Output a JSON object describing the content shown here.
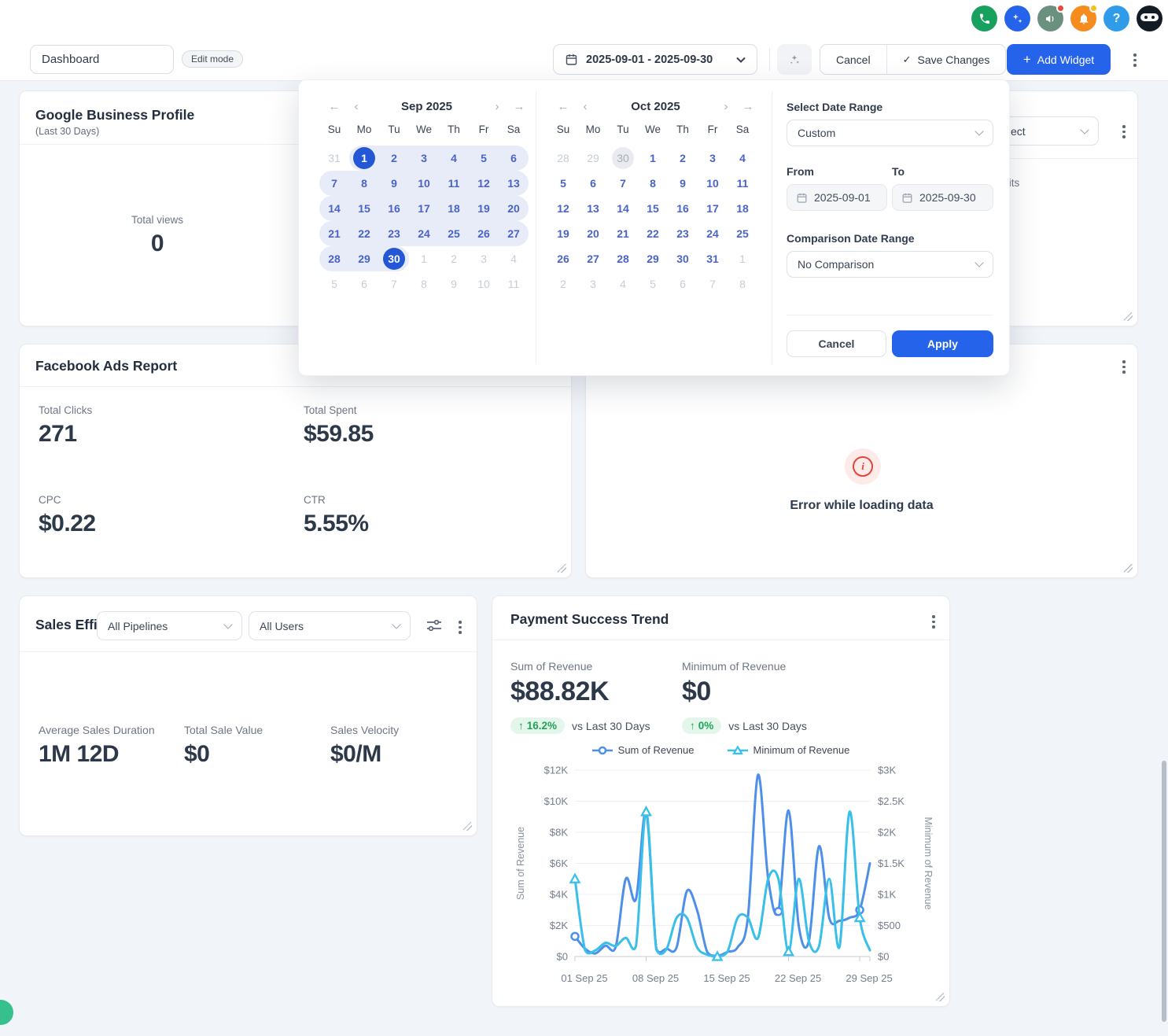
{
  "topbar": {
    "icons": [
      {
        "name": "phone-icon",
        "color": "#18a05e"
      },
      {
        "name": "sparkles-icon",
        "color": "#2563eb"
      },
      {
        "name": "megaphone-icon",
        "color": "#6b9080",
        "badge": "#e5483d"
      },
      {
        "name": "bell-icon",
        "color": "#f68b1f",
        "badge": "#f4c01e"
      },
      {
        "name": "help-icon",
        "color": "#2e9ce9",
        "glyph": "?"
      },
      {
        "name": "ninja-avatar",
        "color": "#141b24"
      }
    ]
  },
  "header": {
    "dashboard_name": "Dashboard",
    "edit_mode_label": "Edit mode",
    "date_range_value": "2025-09-01 - 2025-09-30",
    "cancel_label": "Cancel",
    "save_label": "Save Changes",
    "add_widget_label": "Add Widget"
  },
  "datepicker": {
    "dow": [
      "Su",
      "Mo",
      "Tu",
      "We",
      "Th",
      "Fr",
      "Sa"
    ],
    "months": [
      {
        "title": "Sep 2025",
        "weeks": [
          [
            [
              31,
              "o"
            ],
            [
              1,
              "s"
            ],
            [
              2,
              "r"
            ],
            [
              3,
              "r"
            ],
            [
              4,
              "r"
            ],
            [
              5,
              "r"
            ],
            [
              6,
              "r"
            ]
          ],
          [
            [
              7,
              "r"
            ],
            [
              8,
              "r"
            ],
            [
              9,
              "r"
            ],
            [
              10,
              "r"
            ],
            [
              11,
              "r"
            ],
            [
              12,
              "r"
            ],
            [
              13,
              "r"
            ]
          ],
          [
            [
              14,
              "r"
            ],
            [
              15,
              "r"
            ],
            [
              16,
              "r"
            ],
            [
              17,
              "r"
            ],
            [
              18,
              "r"
            ],
            [
              19,
              "r"
            ],
            [
              20,
              "r"
            ]
          ],
          [
            [
              21,
              "r"
            ],
            [
              22,
              "r"
            ],
            [
              23,
              "r"
            ],
            [
              24,
              "r"
            ],
            [
              25,
              "r"
            ],
            [
              26,
              "r"
            ],
            [
              27,
              "r"
            ]
          ],
          [
            [
              28,
              "r"
            ],
            [
              29,
              "r"
            ],
            [
              30,
              "s"
            ],
            [
              1,
              "o"
            ],
            [
              2,
              "o"
            ],
            [
              3,
              "o"
            ],
            [
              4,
              "o"
            ]
          ],
          [
            [
              5,
              "o"
            ],
            [
              6,
              "o"
            ],
            [
              7,
              "o"
            ],
            [
              8,
              "o"
            ],
            [
              9,
              "o"
            ],
            [
              10,
              "o"
            ],
            [
              11,
              "o"
            ]
          ]
        ]
      },
      {
        "title": "Oct 2025",
        "weeks": [
          [
            [
              28,
              "o"
            ],
            [
              29,
              "o"
            ],
            [
              30,
              "t"
            ],
            [
              1,
              "d"
            ],
            [
              2,
              "d"
            ],
            [
              3,
              "d"
            ],
            [
              4,
              "d"
            ]
          ],
          [
            [
              5,
              "d"
            ],
            [
              6,
              "d"
            ],
            [
              7,
              "d"
            ],
            [
              8,
              "d"
            ],
            [
              9,
              "d"
            ],
            [
              10,
              "d"
            ],
            [
              11,
              "d"
            ]
          ],
          [
            [
              12,
              "d"
            ],
            [
              13,
              "d"
            ],
            [
              14,
              "d"
            ],
            [
              15,
              "d"
            ],
            [
              16,
              "d"
            ],
            [
              17,
              "d"
            ],
            [
              18,
              "d"
            ]
          ],
          [
            [
              19,
              "d"
            ],
            [
              20,
              "d"
            ],
            [
              21,
              "d"
            ],
            [
              22,
              "d"
            ],
            [
              23,
              "d"
            ],
            [
              24,
              "d"
            ],
            [
              25,
              "d"
            ]
          ],
          [
            [
              26,
              "d"
            ],
            [
              27,
              "d"
            ],
            [
              28,
              "d"
            ],
            [
              29,
              "d"
            ],
            [
              30,
              "d"
            ],
            [
              31,
              "d"
            ],
            [
              1,
              "o"
            ]
          ],
          [
            [
              2,
              "o"
            ],
            [
              3,
              "o"
            ],
            [
              4,
              "o"
            ],
            [
              5,
              "o"
            ],
            [
              6,
              "o"
            ],
            [
              7,
              "o"
            ],
            [
              8,
              "o"
            ]
          ]
        ]
      }
    ],
    "select_date_range_label": "Select Date Range",
    "preset_value": "Custom",
    "from_label": "From",
    "from_value": "2025-09-01",
    "to_label": "To",
    "to_value": "2025-09-30",
    "comparison_label": "Comparison Date Range",
    "comparison_value": "No Comparison",
    "cancel_label": "Cancel",
    "apply_label": "Apply"
  },
  "widgets": {
    "google_business": {
      "title": "Google Business Profile",
      "subtitle": "(Last 30 Days)",
      "metric_label": "Total views",
      "metric_value": "0"
    },
    "top_right": {
      "select_value": "ect",
      "visible_label": "isits"
    },
    "facebook": {
      "title": "Facebook Ads Report",
      "metrics": [
        {
          "label": "Total Clicks",
          "value": "271"
        },
        {
          "label": "Total Spent",
          "value": "$59.85"
        },
        {
          "label": "CPC",
          "value": "$0.22"
        },
        {
          "label": "CTR",
          "value": "5.55%"
        }
      ]
    },
    "error": {
      "message": "Error while loading data"
    },
    "sales": {
      "title": "Sales Effi",
      "pipeline_filter": "All Pipelines",
      "user_filter": "All Users",
      "metrics": [
        {
          "label": "Average Sales Duration",
          "value": "1M 12D"
        },
        {
          "label": "Total Sale Value",
          "value": "$0"
        },
        {
          "label": "Sales Velocity",
          "value": "$0/M"
        }
      ]
    },
    "payment": {
      "title": "Payment Success Trend",
      "kpis": [
        {
          "label": "Sum of Revenue",
          "value": "$88.82K",
          "delta": "16.2%",
          "vs": "vs Last 30 Days"
        },
        {
          "label": "Minimum of Revenue",
          "value": "$0",
          "delta": "0%",
          "vs": "vs Last 30 Days"
        }
      ]
    }
  },
  "chart_data": {
    "type": "line",
    "title": "Payment Success Trend",
    "x_range": [
      "2025-09-01",
      "2025-09-30"
    ],
    "x_tick_labels": [
      "01 Sep 25",
      "08 Sep 25",
      "15 Sep 25",
      "22 Sep 25",
      "29 Sep 25"
    ],
    "x_tick_indices": [
      0,
      7,
      14,
      21,
      28
    ],
    "series": [
      {
        "name": "Sum of Revenue",
        "axis": "left",
        "color": "#4E8FE9",
        "marker": "circle",
        "marker_indices": [
          0,
          20,
          28
        ],
        "values": [
          1300,
          500,
          200,
          700,
          600,
          5000,
          3700,
          9300,
          500,
          500,
          600,
          4200,
          3000,
          300,
          50,
          300,
          600,
          2500,
          11700,
          5000,
          2900,
          9400,
          2000,
          1000,
          7100,
          2500,
          2300,
          2500,
          3000,
          6000
        ]
      },
      {
        "name": "Minimum of Revenue",
        "axis": "right",
        "color": "#38BFEA",
        "marker": "triangle",
        "marker_indices": [
          0,
          7,
          14,
          21,
          28
        ],
        "values": [
          1250,
          100,
          100,
          220,
          170,
          300,
          170,
          2330,
          110,
          120,
          625,
          625,
          150,
          30,
          0,
          80,
          625,
          625,
          300,
          1250,
          1250,
          80,
          1250,
          250,
          170,
          1250,
          150,
          2330,
          625,
          100
        ]
      }
    ],
    "left_axis": {
      "label": "Sum of Revenue",
      "range": [
        0,
        12000
      ],
      "ticks": [
        "$0",
        "$2K",
        "$4K",
        "$6K",
        "$8K",
        "$10K",
        "$12K"
      ]
    },
    "right_axis": {
      "label": "Minimum of Revenue",
      "range": [
        0,
        3000
      ],
      "ticks": [
        "$0",
        "$500",
        "$1K",
        "$1.5K",
        "$2K",
        "$2.5K",
        "$3K"
      ]
    },
    "legend": [
      "Sum of Revenue",
      "Minimum of Revenue"
    ],
    "grid": true,
    "legend_position": "top"
  },
  "colors": {
    "primary": "#2563eb",
    "selected_day": "#2457d5",
    "range_bg": "#e8ecf9",
    "badge_green_bg": "#e4f6eb",
    "badge_green_text": "#1fa356",
    "error_red": "#e0443a",
    "line_blue": "#4E8FE9",
    "line_cyan": "#38BFEA"
  }
}
